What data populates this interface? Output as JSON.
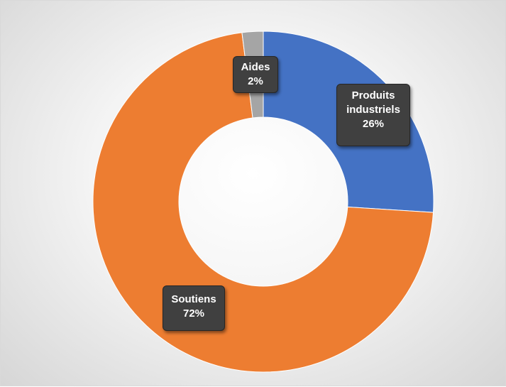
{
  "chart_data": {
    "type": "pie",
    "subtype": "doughnut",
    "title": "",
    "slices": [
      {
        "name": "Produits industriels",
        "name_lines": [
          "Produits",
          "industriels"
        ],
        "value": 26,
        "value_label": "26%",
        "color": "#4472C4"
      },
      {
        "name": "Soutiens",
        "name_lines": [
          "Soutiens"
        ],
        "value": 72,
        "value_label": "72%",
        "color": "#ED7D31"
      },
      {
        "name": "Aides",
        "name_lines": [
          "Aides"
        ],
        "value": 2,
        "value_label": "2%",
        "color": "#A5A5A5"
      }
    ],
    "start_angle_deg": 0,
    "direction": "clockwise",
    "legend": "none"
  }
}
